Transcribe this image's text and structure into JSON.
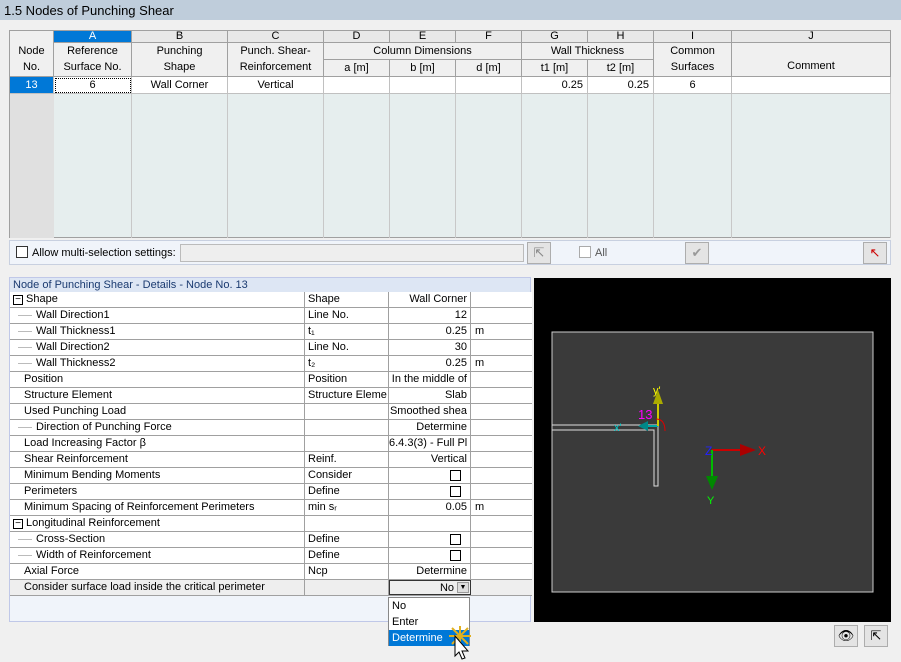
{
  "title": "1.5 Nodes of Punching Shear",
  "table": {
    "letters": [
      "A",
      "B",
      "C",
      "D",
      "E",
      "F",
      "G",
      "H",
      "I",
      "J"
    ],
    "node_header": [
      "Node",
      "No."
    ],
    "headers": {
      "A": [
        "Reference",
        "Surface No."
      ],
      "B": [
        "Punching",
        "Shape"
      ],
      "C": [
        "Punch. Shear-",
        "Reinforcement"
      ],
      "DEF": "Column Dimensions",
      "D": "a [m]",
      "E": "b [m]",
      "F": "d [m]",
      "GH": "Wall Thickness",
      "G": "t1 [m]",
      "H": "t2 [m]",
      "I": [
        "Common",
        "Surfaces"
      ],
      "J": "Comment"
    },
    "rows": [
      {
        "node": "13",
        "A": "6",
        "B": "Wall Corner",
        "C": "Vertical",
        "D": "",
        "E": "",
        "F": "",
        "G": "0.25",
        "H": "0.25",
        "I": "6",
        "J": ""
      }
    ]
  },
  "toolbar": {
    "multi_label": "Allow multi-selection settings:",
    "multi_checked": false,
    "all_label": "All",
    "all_checked": false
  },
  "details": {
    "title": "Node of Punching Shear - Details - Node No.  13",
    "rows": [
      {
        "name": "Shape",
        "sym": "Shape",
        "val": "Wall Corner",
        "unit": "",
        "lvl": 0,
        "exp": "⊟"
      },
      {
        "name": "Wall Direction1",
        "sym": "Line No.",
        "val": "12",
        "unit": "",
        "lvl": 2
      },
      {
        "name": "Wall Thickness1",
        "sym": "t₁",
        "val": "0.25",
        "unit": "m",
        "lvl": 2
      },
      {
        "name": "Wall Direction2",
        "sym": "Line No.",
        "val": "30",
        "unit": "",
        "lvl": 2
      },
      {
        "name": "Wall Thickness2",
        "sym": "t₂",
        "val": "0.25",
        "unit": "m",
        "lvl": 2
      },
      {
        "name": "Position",
        "sym": "Position",
        "val": "In the middle of",
        "unit": "",
        "lvl": 1
      },
      {
        "name": "Structure Element",
        "sym": "Structure Eleme",
        "val": "Slab",
        "unit": "",
        "lvl": 1
      },
      {
        "name": "Used Punching Load",
        "sym": "",
        "val": "Smoothed shea",
        "unit": "",
        "lvl": 1
      },
      {
        "name": "Direction of Punching Force",
        "sym": "",
        "val": "Determine",
        "unit": "",
        "lvl": 2
      },
      {
        "name": "Load Increasing Factor β",
        "sym": "",
        "val": "6.4.3(3) - Full Pl",
        "unit": "",
        "lvl": 1
      },
      {
        "name": "Shear Reinforcement",
        "sym": "Reinf.",
        "val": "Vertical",
        "unit": "",
        "lvl": 1
      },
      {
        "name": "Minimum Bending Moments",
        "sym": "Consider",
        "val": "",
        "check": true,
        "unit": "",
        "lvl": 1
      },
      {
        "name": "Perimeters",
        "sym": "Define",
        "val": "",
        "check": true,
        "unit": "",
        "lvl": 1
      },
      {
        "name": "Minimum Spacing of Reinforcement Perimeters",
        "sym": "min sᵣ",
        "val": "0.05",
        "unit": "m",
        "lvl": 1
      },
      {
        "name": "Longitudinal Reinforcement",
        "sym": "",
        "val": "",
        "unit": "",
        "lvl": 0,
        "exp": "⊟"
      },
      {
        "name": "Cross-Section",
        "sym": "Define",
        "val": "",
        "check": true,
        "unit": "",
        "lvl": 2
      },
      {
        "name": "Width of Reinforcement",
        "sym": "Define",
        "val": "",
        "check": true,
        "unit": "",
        "lvl": 2
      },
      {
        "name": "Axial Force",
        "sym": "Ncp",
        "val": "Determine",
        "unit": "",
        "lvl": 1
      },
      {
        "name": "Consider surface load inside the critical perimeter",
        "sym": "",
        "val": "No",
        "unit": "",
        "lvl": 1,
        "combo": true
      }
    ],
    "dropdown_options": [
      "No",
      "Enter",
      "Determine"
    ],
    "dropdown_highlight": "Determine"
  },
  "view": {
    "node_label": "13",
    "axes": [
      "x'",
      "y'",
      "X",
      "Y",
      "Z"
    ]
  }
}
